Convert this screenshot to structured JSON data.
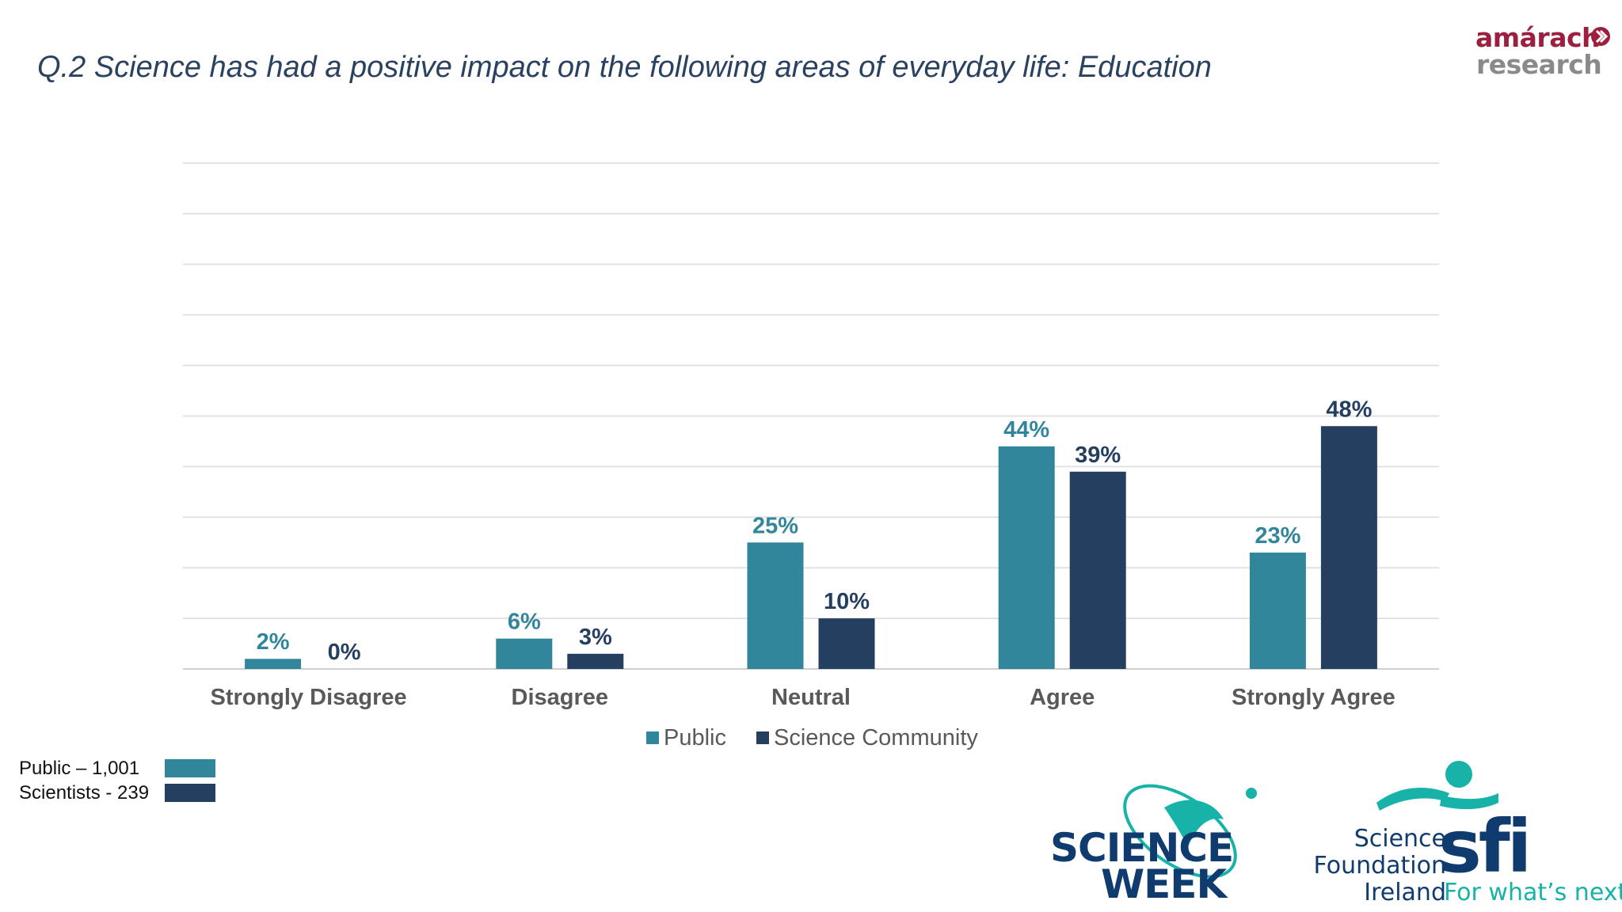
{
  "title": "Q.2 Science has had a positive impact on the following areas of everyday life: Education",
  "logos": {
    "amarach_top": "amárach",
    "amarach_bottom": "research",
    "science_week_line1": "SCIENCE",
    "science_week_line2": "WEEK",
    "sfi_line1": "Science",
    "sfi_line2": "Foundation",
    "sfi_line3": "Ireland",
    "sfi_mark": "sfi",
    "sfi_tagline": "For what’s next"
  },
  "sample_key": {
    "public": "Public – 1,001",
    "scientists": "Scientists - 239"
  },
  "colors": {
    "public": "#31869b",
    "science_community": "#243f60",
    "title": "#2a4260",
    "brand_red": "#9c1f3f",
    "brand_teal": "#17b3a8",
    "brand_navy": "#0f3b6e"
  },
  "chart_data": {
    "type": "bar",
    "title": "",
    "xlabel": "",
    "ylabel": "",
    "ylim": [
      0,
      100
    ],
    "grid": true,
    "legend_position": "bottom",
    "categories": [
      "Strongly Disagree",
      "Disagree",
      "Neutral",
      "Agree",
      "Strongly Agree"
    ],
    "series": [
      {
        "name": "Public",
        "values": [
          2,
          6,
          25,
          44,
          23
        ],
        "labels": [
          "2%",
          "6%",
          "25%",
          "44%",
          "23%"
        ]
      },
      {
        "name": "Science Community",
        "values": [
          0,
          3,
          10,
          39,
          48
        ],
        "labels": [
          "0%",
          "3%",
          "10%",
          "39%",
          "48%"
        ]
      }
    ]
  }
}
